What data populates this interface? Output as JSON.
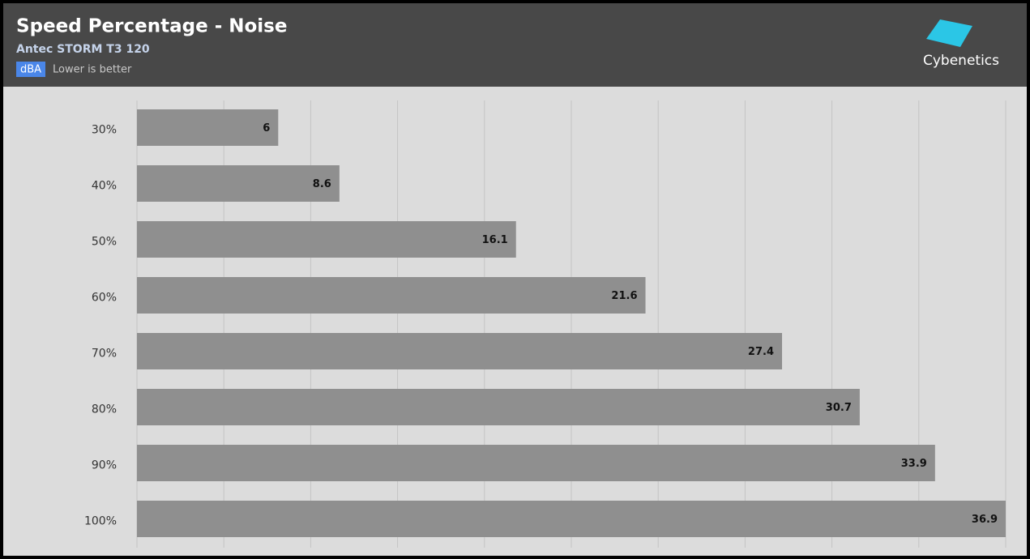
{
  "chart_data": {
    "type": "hbar",
    "title": "Speed Percentage - Noise",
    "subtitle": "Antec STORM T3 120",
    "unit": "dBA",
    "note": "Lower is better",
    "logo_text": "Cybenetics",
    "categories": [
      "30%",
      "40%",
      "50%",
      "60%",
      "70%",
      "80%",
      "90%",
      "100%"
    ],
    "values": [
      6,
      8.6,
      16.1,
      21.6,
      27.4,
      30.7,
      33.9,
      36.9
    ],
    "color": "#8f8f8f",
    "xlim": [
      0,
      36.9
    ],
    "xticks": [
      0,
      3.69,
      7.38,
      11.07,
      14.76,
      18.45,
      22.14,
      25.83,
      29.52,
      33.21,
      36.9
    ],
    "grid": true
  }
}
